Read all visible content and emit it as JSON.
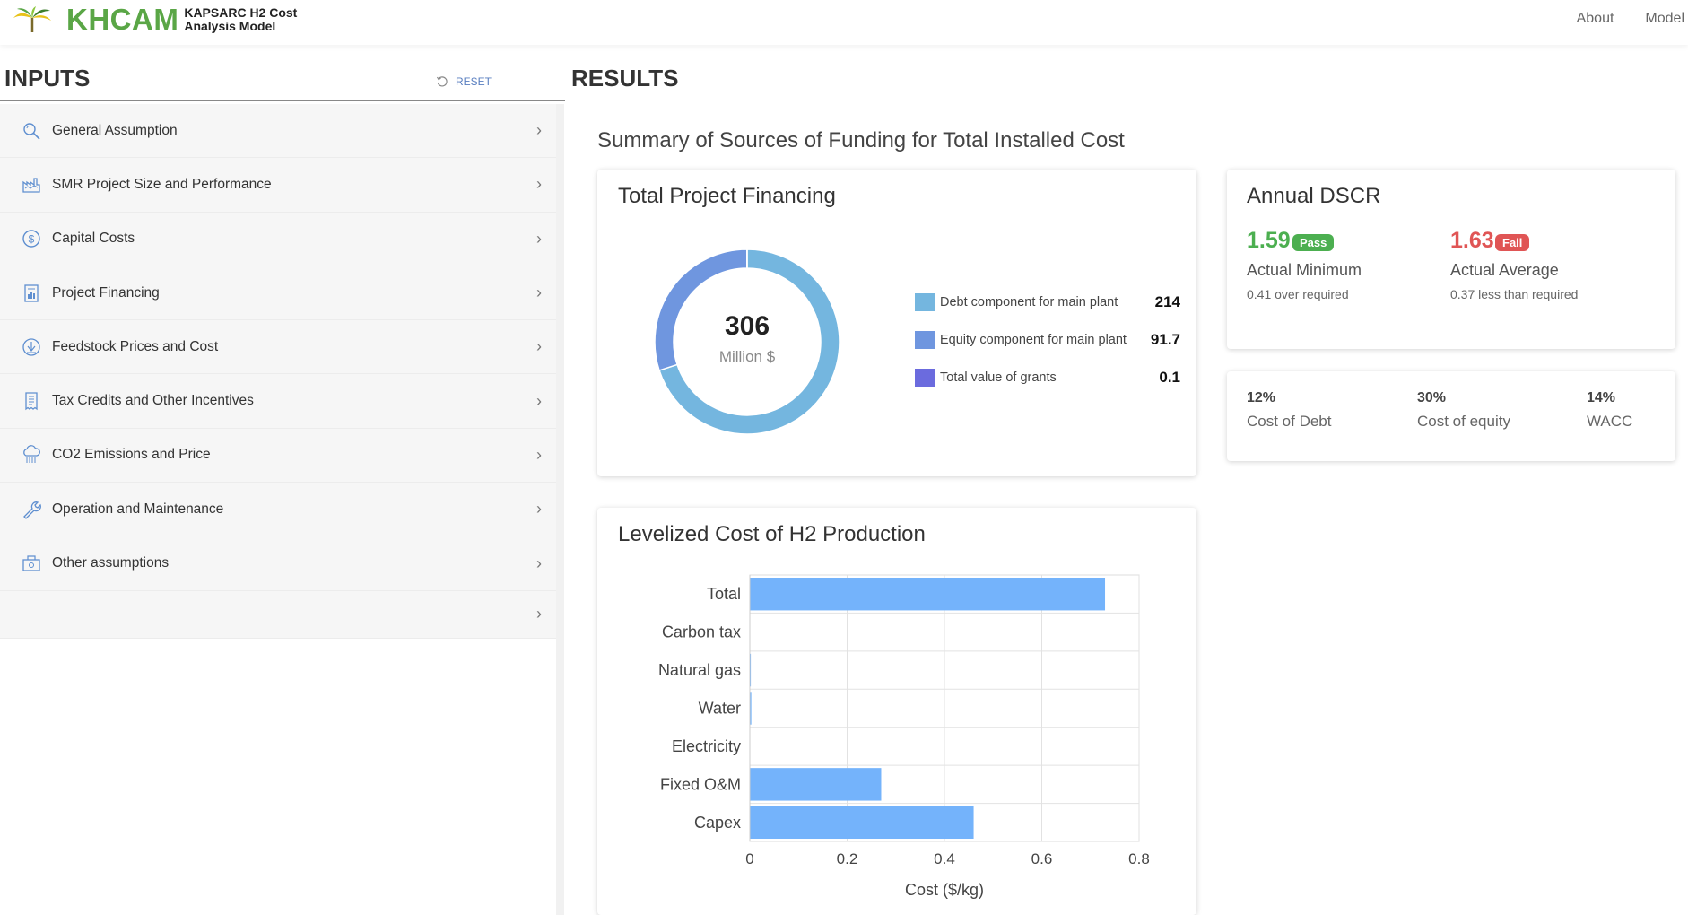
{
  "header": {
    "brand": "KHCAM",
    "subtitle": "KAPSARC H2 Cost Analysis Model",
    "nav": [
      "About",
      "Model"
    ]
  },
  "inputs": {
    "title": "INPUTS",
    "reset_label": "RESET",
    "items": [
      {
        "label": "General Assumption",
        "icon": "search-icon"
      },
      {
        "label": "SMR Project Size and Performance",
        "icon": "factory-icon"
      },
      {
        "label": "Capital Costs",
        "icon": "dollar-icon"
      },
      {
        "label": "Project Financing",
        "icon": "document-chart-icon"
      },
      {
        "label": "Feedstock Prices and Cost",
        "icon": "feedstock-icon"
      },
      {
        "label": "Tax Credits and Other Incentives",
        "icon": "receipt-icon"
      },
      {
        "label": "CO2 Emissions and Price",
        "icon": "cloud-emission-icon"
      },
      {
        "label": "Operation and Maintenance",
        "icon": "wrench-icon"
      },
      {
        "label": "Other assumptions",
        "icon": "other-assumptions-icon"
      },
      {
        "label": "",
        "icon": ""
      }
    ]
  },
  "results": {
    "title": "RESULTS",
    "summary_heading": "Summary of Sources of Funding for Total Installed Cost",
    "financing": {
      "title": "Total Project Financing",
      "center_value": "306",
      "center_unit": "Million $",
      "legend": [
        {
          "label": "Debt component for main plant",
          "value": "214",
          "color": "#74b6df"
        },
        {
          "label": "Equity component for main plant",
          "value": "91.7",
          "color": "#6f96df"
        },
        {
          "label": "Total value of grants",
          "value": "0.1",
          "color": "#6b6bde"
        }
      ],
      "chart_data": {
        "type": "pie",
        "categories": [
          "Debt component for main plant",
          "Equity component for main plant",
          "Total value of grants"
        ],
        "values": [
          214,
          91.7,
          0.1
        ]
      }
    },
    "dscr": {
      "title": "Annual DSCR",
      "minimum": {
        "value": "1.59",
        "badge": "Pass",
        "label": "Actual Minimum",
        "note": "0.41 over required",
        "color": "#4caf50"
      },
      "average": {
        "value": "1.63",
        "badge": "Fail",
        "label": "Actual Average",
        "note": "0.37 less than required",
        "color": "#e05555"
      }
    },
    "costs": [
      {
        "value": "12%",
        "label": "Cost of Debt"
      },
      {
        "value": "30%",
        "label": "Cost of equity"
      },
      {
        "value": "14%",
        "label": "WACC"
      }
    ],
    "lcoh": {
      "title": "Levelized Cost of H2 Production",
      "chart_data": {
        "type": "bar",
        "orientation": "horizontal",
        "categories": [
          "Total",
          "Carbon tax",
          "Natural gas",
          "Water",
          "Electricity",
          "Fixed O&M",
          "Capex"
        ],
        "values": [
          0.73,
          0.0,
          0.002,
          0.003,
          0.0,
          0.27,
          0.46
        ],
        "xlabel": "Cost ($/kg)",
        "xlim": [
          0,
          0.8
        ],
        "xticks": [
          "0",
          "0.2",
          "0.4",
          "0.6",
          "0.8"
        ],
        "bar_color": "#74b3fb",
        "grid": true
      }
    }
  }
}
